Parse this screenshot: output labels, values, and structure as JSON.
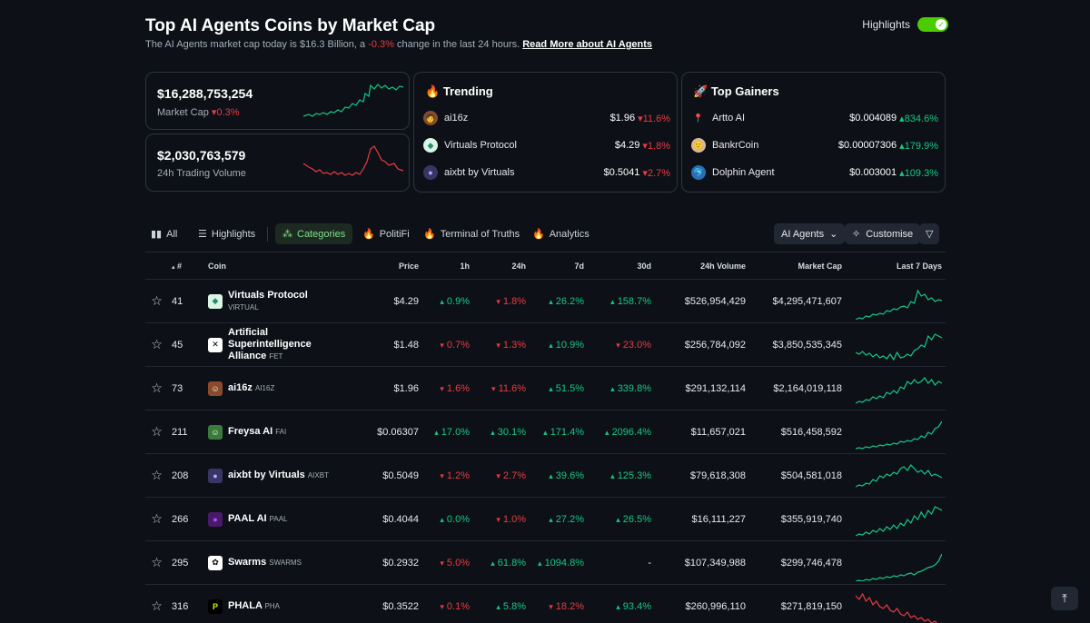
{
  "header": {
    "title": "Top AI Agents Coins by Market Cap",
    "subtitle_prefix": "The AI Agents market cap today is $16.3 Billion, a",
    "subtitle_change": "-0.3%",
    "subtitle_suffix": "change in the last 24 hours.",
    "read_more": "Read More about AI Agents",
    "highlights_label": "Highlights"
  },
  "stats": {
    "market_cap_value": "$16,288,753,254",
    "market_cap_label": "Market Cap",
    "market_cap_change": "0.3%",
    "volume_value": "$2,030,763,579",
    "volume_label": "24h Trading Volume"
  },
  "trending": {
    "title": "Trending",
    "items": [
      {
        "name": "ai16z",
        "price": "$1.96",
        "change": "11.6%"
      },
      {
        "name": "Virtuals Protocol",
        "price": "$4.29",
        "change": "1.8%"
      },
      {
        "name": "aixbt by Virtuals",
        "price": "$0.5041",
        "change": "2.7%"
      }
    ]
  },
  "gainers": {
    "title": "Top Gainers",
    "items": [
      {
        "name": "Artto AI",
        "price": "$0.004089",
        "change": "834.6%"
      },
      {
        "name": "BankrCoin",
        "price": "$0.00007306",
        "change": "179.9%"
      },
      {
        "name": "Dolphin Agent",
        "price": "$0.003001",
        "change": "109.3%"
      }
    ]
  },
  "tabs": {
    "all": "All",
    "highlights": "Highlights",
    "categories": "Categories",
    "politifi": "PolitiFi",
    "terminal": "Terminal of Truths",
    "analytics": "Analytics",
    "filter_select": "AI Agents",
    "customise": "Customise"
  },
  "table": {
    "headers": {
      "rank": "#",
      "coin": "Coin",
      "price": "Price",
      "h1": "1h",
      "h24": "24h",
      "d7": "7d",
      "d30": "30d",
      "volume": "24h Volume",
      "mcap": "Market Cap",
      "last7": "Last 7 Days"
    },
    "rows": [
      {
        "rank": "41",
        "name": "Virtuals Protocol",
        "symbol": "VIRTUAL",
        "price": "$4.29",
        "h1": "0.9%",
        "h24": "1.8%",
        "d7": "26.2%",
        "d30": "158.7%",
        "volume": "$526,954,429",
        "mcap": "$4,295,471,607"
      },
      {
        "rank": "45",
        "name": "Artificial Superintelligence Alliance",
        "symbol": "FET",
        "price": "$1.48",
        "h1": "0.7%",
        "h24": "1.3%",
        "d7": "10.9%",
        "d30": "23.0%",
        "volume": "$256,784,092",
        "mcap": "$3,850,535,345"
      },
      {
        "rank": "73",
        "name": "ai16z",
        "symbol": "AI16Z",
        "price": "$1.96",
        "h1": "1.6%",
        "h24": "11.6%",
        "d7": "51.5%",
        "d30": "339.8%",
        "volume": "$291,132,114",
        "mcap": "$2,164,019,118"
      },
      {
        "rank": "211",
        "name": "Freysa AI",
        "symbol": "FAI",
        "price": "$0.06307",
        "h1": "17.0%",
        "h24": "30.1%",
        "d7": "171.4%",
        "d30": "2096.4%",
        "volume": "$11,657,021",
        "mcap": "$516,458,592"
      },
      {
        "rank": "208",
        "name": "aixbt by Virtuals",
        "symbol": "AIXBT",
        "price": "$0.5049",
        "h1": "1.2%",
        "h24": "2.7%",
        "d7": "39.6%",
        "d30": "125.3%",
        "volume": "$79,618,308",
        "mcap": "$504,581,018"
      },
      {
        "rank": "266",
        "name": "PAAL AI",
        "symbol": "PAAL",
        "price": "$0.4044",
        "h1": "0.0%",
        "h24": "1.0%",
        "d7": "27.2%",
        "d30": "26.5%",
        "volume": "$16,111,227",
        "mcap": "$355,919,740"
      },
      {
        "rank": "295",
        "name": "Swarms",
        "symbol": "SWARMS",
        "price": "$0.2932",
        "h1": "5.0%",
        "h24": "61.8%",
        "d7": "1094.8%",
        "d30": "-",
        "volume": "$107,349,988",
        "mcap": "$299,746,478"
      },
      {
        "rank": "316",
        "name": "PHALA",
        "symbol": "PHA",
        "price": "$0.3522",
        "h1": "0.1%",
        "h24": "5.8%",
        "d7": "18.2%",
        "d30": "93.4%",
        "volume": "$260,996,110",
        "mcap": "$271,819,150"
      }
    ]
  },
  "colors": {
    "up": "#16c784",
    "down": "#ea3943",
    "accent": "#4bcc00"
  }
}
